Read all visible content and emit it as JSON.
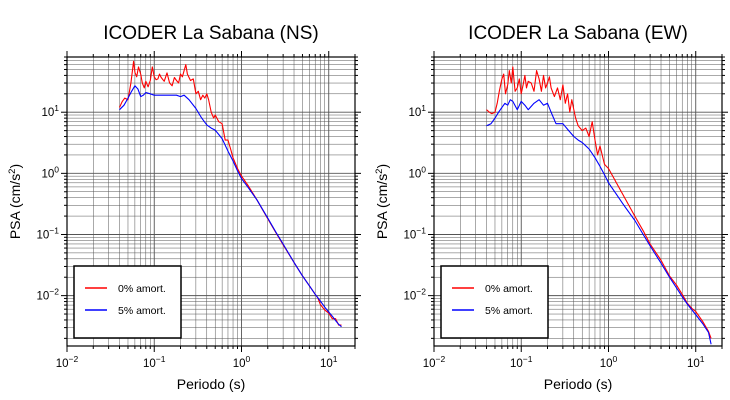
{
  "colors": {
    "undamped": "#ff0000",
    "damped": "#0000ff",
    "frame": "#000000",
    "grid": "#555555"
  },
  "chart_data": [
    {
      "type": "line",
      "title": "ICODER La Sabana (NS)",
      "xlabel": "Periodo (s)",
      "ylabel": "PSA (cm/s²)",
      "xscale": "log",
      "yscale": "log",
      "xlim": [
        0.01,
        20
      ],
      "ylim": [
        0.0015,
        80
      ],
      "grid": true,
      "legend_position": "bottom-left",
      "x_ticks": [
        {
          "value": 0.01,
          "base": "10",
          "exp": "−2"
        },
        {
          "value": 0.1,
          "base": "10",
          "exp": "−1"
        },
        {
          "value": 1,
          "base": "10",
          "exp": "0"
        },
        {
          "value": 10,
          "base": "10",
          "exp": "1"
        }
      ],
      "y_ticks": [
        {
          "value": 0.01,
          "base": "10",
          "exp": "−2"
        },
        {
          "value": 0.1,
          "base": "10",
          "exp": "−1"
        },
        {
          "value": 1,
          "base": "10",
          "exp": "0"
        },
        {
          "value": 10,
          "base": "10",
          "exp": "1"
        }
      ],
      "series": [
        {
          "name": "0% amort.",
          "color": "#ff0000",
          "x": [
            0.04,
            0.043,
            0.046,
            0.05,
            0.054,
            0.058,
            0.06,
            0.063,
            0.066,
            0.07,
            0.073,
            0.077,
            0.08,
            0.085,
            0.09,
            0.095,
            0.1,
            0.105,
            0.11,
            0.115,
            0.12,
            0.13,
            0.14,
            0.15,
            0.16,
            0.17,
            0.18,
            0.19,
            0.2,
            0.21,
            0.22,
            0.23,
            0.24,
            0.26,
            0.28,
            0.3,
            0.32,
            0.34,
            0.36,
            0.38,
            0.4,
            0.42,
            0.45,
            0.48,
            0.5,
            0.55,
            0.6,
            0.65,
            0.7,
            0.75,
            0.8,
            0.9,
            1.0,
            1.2,
            1.5,
            2,
            2.5,
            3,
            4,
            5,
            6,
            7,
            7.5,
            8,
            9,
            10,
            11,
            12,
            13,
            14
          ],
          "y": [
            12,
            15,
            17,
            16,
            30,
            68,
            45,
            38,
            55,
            42,
            30,
            25,
            32,
            26,
            33,
            55,
            38,
            34,
            35,
            42,
            37,
            32,
            44,
            30,
            27,
            37,
            33,
            30,
            42,
            38,
            48,
            60,
            42,
            33,
            35,
            20,
            22,
            16,
            19,
            17,
            20,
            16,
            10,
            8,
            9,
            7,
            6.5,
            3.5,
            3.5,
            2.5,
            1.8,
            1.2,
            0.9,
            0.62,
            0.37,
            0.18,
            0.105,
            0.068,
            0.035,
            0.021,
            0.0145,
            0.0105,
            0.0092,
            0.0072,
            0.0058,
            0.0052,
            0.0042,
            0.0042,
            0.0033,
            0.0033
          ]
        },
        {
          "name": "5% amort.",
          "color": "#0000ff",
          "x": [
            0.04,
            0.045,
            0.05,
            0.055,
            0.06,
            0.065,
            0.07,
            0.075,
            0.08,
            0.09,
            0.1,
            0.12,
            0.15,
            0.18,
            0.2,
            0.22,
            0.25,
            0.3,
            0.35,
            0.4,
            0.45,
            0.5,
            0.6,
            0.7,
            0.8,
            0.9,
            1.0,
            1.2,
            1.5,
            2,
            2.5,
            3,
            4,
            5,
            6,
            7,
            8,
            9,
            10,
            11,
            12,
            13,
            14
          ],
          "y": [
            11,
            13,
            17,
            22,
            27,
            24,
            18,
            19,
            21,
            20,
            19,
            19,
            19,
            19,
            18,
            19,
            16,
            11.5,
            8,
            6.2,
            5.5,
            5.1,
            3.7,
            2.3,
            1.6,
            1.1,
            0.82,
            0.58,
            0.37,
            0.185,
            0.107,
            0.07,
            0.035,
            0.021,
            0.0145,
            0.0105,
            0.0082,
            0.0065,
            0.0054,
            0.0046,
            0.0039,
            0.0034,
            0.0031
          ]
        }
      ]
    },
    {
      "type": "line",
      "title": "ICODER La Sabana (EW)",
      "xlabel": "Periodo (s)",
      "ylabel": "PSA (cm/s²)",
      "xscale": "log",
      "yscale": "log",
      "xlim": [
        0.01,
        20
      ],
      "ylim": [
        0.0015,
        80
      ],
      "grid": true,
      "legend_position": "bottom-left",
      "x_ticks": [
        {
          "value": 0.01,
          "base": "10",
          "exp": "−2"
        },
        {
          "value": 0.1,
          "base": "10",
          "exp": "−1"
        },
        {
          "value": 1,
          "base": "10",
          "exp": "0"
        },
        {
          "value": 10,
          "base": "10",
          "exp": "1"
        }
      ],
      "y_ticks": [
        {
          "value": 0.01,
          "base": "10",
          "exp": "−2"
        },
        {
          "value": 0.1,
          "base": "10",
          "exp": "−1"
        },
        {
          "value": 1,
          "base": "10",
          "exp": "0"
        },
        {
          "value": 10,
          "base": "10",
          "exp": "1"
        }
      ],
      "series": [
        {
          "name": "0% amort.",
          "color": "#ff0000",
          "x": [
            0.04,
            0.043,
            0.046,
            0.05,
            0.053,
            0.056,
            0.06,
            0.063,
            0.066,
            0.07,
            0.073,
            0.077,
            0.08,
            0.085,
            0.09,
            0.095,
            0.1,
            0.105,
            0.11,
            0.115,
            0.12,
            0.13,
            0.14,
            0.15,
            0.16,
            0.17,
            0.18,
            0.19,
            0.2,
            0.21,
            0.22,
            0.24,
            0.26,
            0.28,
            0.3,
            0.32,
            0.34,
            0.36,
            0.38,
            0.4,
            0.42,
            0.45,
            0.5,
            0.55,
            0.6,
            0.65,
            0.7,
            0.75,
            0.8,
            0.9,
            1.0,
            1.2,
            1.5,
            2,
            2.5,
            3,
            4,
            5,
            6,
            7,
            8,
            9,
            10,
            12,
            14,
            15
          ],
          "y": [
            11,
            10,
            9.5,
            10,
            14,
            22,
            35,
            42,
            20,
            28,
            48,
            30,
            55,
            22,
            25,
            35,
            20,
            28,
            40,
            25,
            32,
            30,
            22,
            48,
            35,
            22,
            40,
            25,
            30,
            38,
            25,
            18,
            25,
            16,
            28,
            14,
            20,
            10,
            16,
            11,
            8,
            6,
            5,
            5.5,
            4,
            7,
            3.5,
            2,
            2.8,
            1.4,
            1.2,
            0.75,
            0.42,
            0.2,
            0.115,
            0.07,
            0.038,
            0.021,
            0.015,
            0.0105,
            0.0075,
            0.0062,
            0.0055,
            0.0038,
            0.0026,
            0.002
          ]
        },
        {
          "name": "5% amort.",
          "color": "#0000ff",
          "x": [
            0.04,
            0.045,
            0.05,
            0.055,
            0.06,
            0.065,
            0.07,
            0.075,
            0.08,
            0.09,
            0.1,
            0.11,
            0.12,
            0.14,
            0.16,
            0.18,
            0.2,
            0.22,
            0.25,
            0.3,
            0.35,
            0.4,
            0.45,
            0.5,
            0.6,
            0.7,
            0.8,
            0.9,
            1.0,
            1.2,
            1.5,
            2,
            2.5,
            3,
            4,
            5,
            6,
            7,
            8,
            9,
            10,
            12,
            14,
            15
          ],
          "y": [
            6,
            6.5,
            8,
            10,
            12,
            14,
            13,
            16,
            15,
            11,
            15,
            13,
            11,
            14,
            16,
            13,
            14,
            10,
            6.5,
            6.5,
            5,
            4,
            3.5,
            3.2,
            2.5,
            1.8,
            1.3,
            0.95,
            0.7,
            0.48,
            0.3,
            0.17,
            0.1,
            0.065,
            0.034,
            0.02,
            0.0135,
            0.0096,
            0.0073,
            0.0059,
            0.0049,
            0.0035,
            0.0025,
            0.0016
          ]
        }
      ]
    }
  ]
}
